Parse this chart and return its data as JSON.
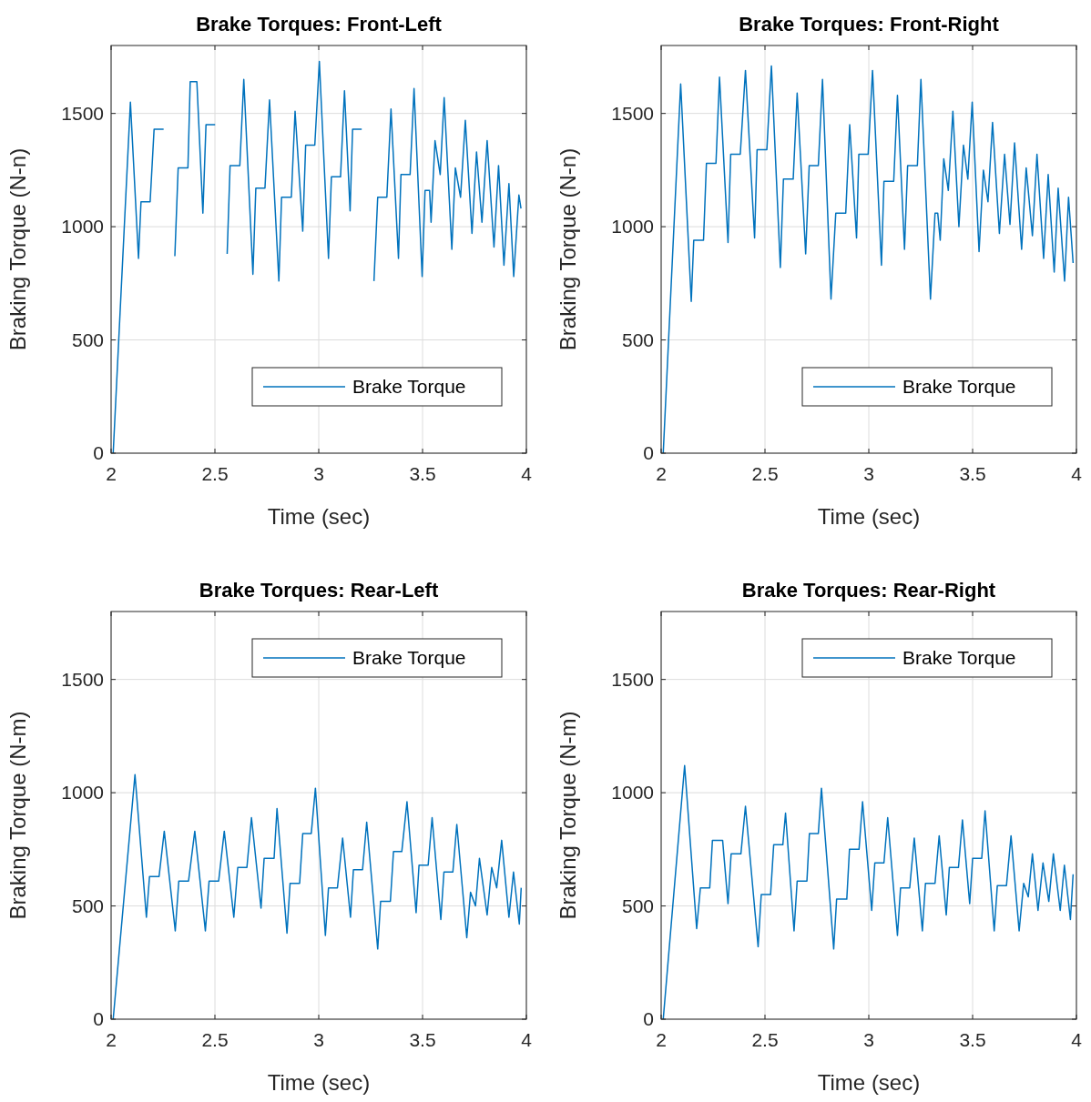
{
  "chart_data": [
    {
      "type": "line",
      "title": "Brake Torques: Front-Left",
      "xlabel": "Time (sec)",
      "ylabel": "Braking Torque (N-n)",
      "xlim": [
        2,
        4
      ],
      "xticks": [
        2,
        2.5,
        3,
        3.5,
        4
      ],
      "ylim": [
        0,
        1800
      ],
      "yticks": [
        0,
        500,
        1000,
        1500
      ],
      "grid": true,
      "legend": "bottom right",
      "series": [
        {
          "name": "Brake Torque",
          "color": "#0072bd",
          "x": [
            2.01,
            2.093,
            2.132,
            2.144,
            2.188,
            2.207,
            2.253,
            2.268,
            2.307,
            2.323,
            2.37,
            2.381,
            2.413,
            2.442,
            2.457,
            2.501,
            2.515,
            2.559,
            2.573,
            2.62,
            2.639,
            2.683,
            2.697,
            2.741,
            2.763,
            2.808,
            2.821,
            2.868,
            2.886,
            2.923,
            2.937,
            2.981,
            3.003,
            3.047,
            3.061,
            3.105,
            3.124,
            3.151,
            3.163,
            3.207,
            3.226,
            3.266,
            3.284,
            3.328,
            3.348,
            3.384,
            3.396,
            3.44,
            3.459,
            3.498,
            3.512,
            3.534,
            3.541,
            3.56,
            3.585,
            3.604,
            3.641,
            3.658,
            3.683,
            3.706,
            3.738,
            3.76,
            3.786,
            3.811,
            3.844,
            3.866,
            3.892,
            3.916,
            3.939,
            3.964,
            3.974
          ],
          "values": [
            0,
            1550,
            860,
            1110,
            1110,
            1430,
            1430,
            null,
            870,
            1260,
            1260,
            1640,
            1640,
            1060,
            1450,
            1450,
            null,
            880,
            1270,
            1270,
            1650,
            790,
            1170,
            1170,
            1560,
            760,
            1130,
            1130,
            1510,
            980,
            1360,
            1360,
            1730,
            860,
            1220,
            1220,
            1600,
            1070,
            1430,
            1430,
            null,
            760,
            1130,
            1130,
            1520,
            860,
            1230,
            1230,
            1610,
            780,
            1160,
            1160,
            1020,
            1380,
            1230,
            1570,
            900,
            1260,
            1130,
            1470,
            970,
            1330,
            1020,
            1380,
            910,
            1270,
            830,
            1190,
            780,
            1140,
            1080
          ]
        }
      ]
    },
    {
      "type": "line",
      "title": "Brake Torques: Front-Right",
      "xlabel": "Time (sec)",
      "ylabel": "Braking Torque (N-n)",
      "xlim": [
        2,
        4
      ],
      "xticks": [
        2,
        2.5,
        3,
        3.5,
        4
      ],
      "ylim": [
        0,
        1800
      ],
      "yticks": [
        0,
        500,
        1000,
        1500
      ],
      "grid": true,
      "legend": "bottom right",
      "series": [
        {
          "name": "Brake Torque",
          "color": "#0072bd",
          "x": [
            2.01,
            2.094,
            2.145,
            2.157,
            2.204,
            2.218,
            2.264,
            2.281,
            2.322,
            2.335,
            2.381,
            2.406,
            2.45,
            2.462,
            2.509,
            2.531,
            2.574,
            2.589,
            2.636,
            2.655,
            2.696,
            2.713,
            2.757,
            2.777,
            2.818,
            2.841,
            2.889,
            2.908,
            2.941,
            2.952,
            2.997,
            3.018,
            3.061,
            3.073,
            3.12,
            3.138,
            3.172,
            3.187,
            3.234,
            3.251,
            3.297,
            3.319,
            3.332,
            3.344,
            3.361,
            3.383,
            3.405,
            3.434,
            3.456,
            3.477,
            3.498,
            3.531,
            3.552,
            3.574,
            3.596,
            3.629,
            3.654,
            3.68,
            3.702,
            3.736,
            3.758,
            3.788,
            3.81,
            3.842,
            3.864,
            3.893,
            3.912,
            3.943,
            3.962,
            3.984
          ],
          "values": [
            0,
            1630,
            670,
            940,
            940,
            1280,
            1280,
            1660,
            930,
            1320,
            1320,
            1690,
            950,
            1340,
            1340,
            1710,
            820,
            1210,
            1210,
            1590,
            880,
            1270,
            1270,
            1650,
            680,
            1060,
            1060,
            1450,
            950,
            1320,
            1320,
            1690,
            830,
            1200,
            1200,
            1580,
            900,
            1270,
            1270,
            1650,
            680,
            1060,
            1060,
            940,
            1300,
            1160,
            1510,
            1000,
            1360,
            1210,
            1550,
            890,
            1250,
            1110,
            1460,
            970,
            1320,
            1010,
            1370,
            900,
            1260,
            960,
            1320,
            860,
            1230,
            800,
            1170,
            760,
            1130,
            840
          ]
        }
      ]
    },
    {
      "type": "line",
      "title": "Brake Torques: Rear-Left",
      "xlabel": "Time (sec)",
      "ylabel": "Braking Torque (N-m)",
      "xlim": [
        2,
        4
      ],
      "xticks": [
        2,
        2.5,
        3,
        3.5,
        4
      ],
      "ylim": [
        0,
        1800
      ],
      "yticks": [
        0,
        500,
        1000,
        1500
      ],
      "grid": true,
      "legend": "top right",
      "series": [
        {
          "name": "Brake Torque",
          "color": "#0072bd",
          "x": [
            2.01,
            2.115,
            2.17,
            2.185,
            2.231,
            2.256,
            2.309,
            2.326,
            2.373,
            2.403,
            2.454,
            2.472,
            2.518,
            2.545,
            2.591,
            2.61,
            2.654,
            2.676,
            2.722,
            2.737,
            2.785,
            2.799,
            2.847,
            2.862,
            2.908,
            2.923,
            2.964,
            2.984,
            3.032,
            3.047,
            3.09,
            3.115,
            3.153,
            3.167,
            3.211,
            3.231,
            3.284,
            3.298,
            3.345,
            3.36,
            3.4,
            3.425,
            3.469,
            3.483,
            3.527,
            3.546,
            3.588,
            3.603,
            3.646,
            3.665,
            3.713,
            3.731,
            3.755,
            3.774,
            3.811,
            3.833,
            3.857,
            3.881,
            3.916,
            3.938,
            3.966,
            3.975
          ],
          "values": [
            0,
            1080,
            450,
            630,
            630,
            830,
            390,
            610,
            610,
            830,
            390,
            610,
            610,
            830,
            450,
            670,
            670,
            890,
            490,
            710,
            710,
            930,
            380,
            600,
            600,
            820,
            820,
            1020,
            370,
            580,
            580,
            800,
            450,
            660,
            660,
            870,
            310,
            520,
            520,
            740,
            740,
            960,
            470,
            680,
            680,
            890,
            440,
            650,
            650,
            860,
            360,
            560,
            500,
            710,
            460,
            670,
            580,
            790,
            450,
            650,
            420,
            580
          ]
        }
      ]
    },
    {
      "type": "line",
      "title": "Brake Torques: Rear-Right",
      "xlabel": "Time (sec)",
      "ylabel": "Braking Torque (N-m)",
      "xlim": [
        2,
        4
      ],
      "xticks": [
        2,
        2.5,
        3,
        3.5,
        4
      ],
      "ylim": [
        0,
        1800
      ],
      "yticks": [
        0,
        500,
        1000,
        1500
      ],
      "grid": true,
      "legend": "top right",
      "series": [
        {
          "name": "Brake Torque",
          "color": "#0072bd",
          "x": [
            2.01,
            2.113,
            2.171,
            2.189,
            2.234,
            2.247,
            2.296,
            2.322,
            2.337,
            2.384,
            2.406,
            2.467,
            2.482,
            2.527,
            2.542,
            2.586,
            2.599,
            2.64,
            2.655,
            2.702,
            2.714,
            2.757,
            2.772,
            2.831,
            2.845,
            2.894,
            2.907,
            2.953,
            2.97,
            3.014,
            3.029,
            3.073,
            3.091,
            3.138,
            3.153,
            3.197,
            3.219,
            3.258,
            3.273,
            3.319,
            3.339,
            3.373,
            3.388,
            3.432,
            3.451,
            3.486,
            3.5,
            3.544,
            3.56,
            3.604,
            3.619,
            3.663,
            3.685,
            3.724,
            3.746,
            3.768,
            3.788,
            3.815,
            3.839,
            3.867,
            3.889,
            3.922,
            3.942,
            3.971,
            3.984
          ],
          "values": [
            0,
            1120,
            400,
            580,
            580,
            790,
            790,
            510,
            730,
            730,
            940,
            320,
            550,
            550,
            770,
            770,
            910,
            390,
            610,
            610,
            820,
            820,
            1020,
            310,
            530,
            530,
            750,
            750,
            960,
            480,
            690,
            690,
            890,
            370,
            580,
            580,
            800,
            390,
            600,
            600,
            810,
            460,
            670,
            670,
            880,
            510,
            710,
            710,
            920,
            390,
            590,
            590,
            810,
            390,
            600,
            540,
            730,
            480,
            690,
            520,
            730,
            480,
            680,
            440,
            640
          ]
        }
      ]
    }
  ]
}
